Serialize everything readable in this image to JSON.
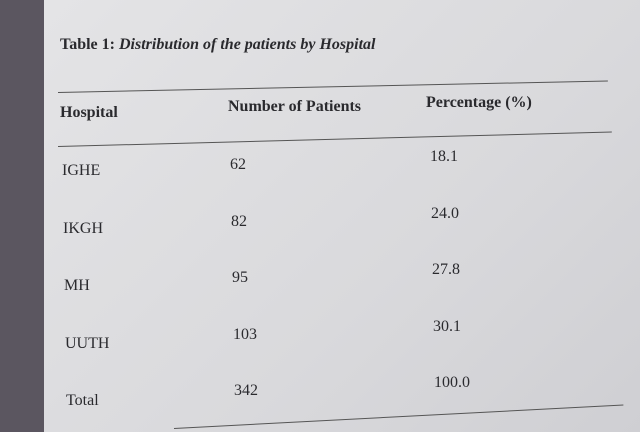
{
  "caption": {
    "label": "Table 1:",
    "title": "Distribution of the patients by Hospital"
  },
  "table": {
    "header": [
      "Hospital",
      "Number of Patients",
      "Percentage (%)"
    ],
    "rows": [
      [
        "IGHE",
        "62",
        "18.1"
      ],
      [
        "IKGH",
        "82",
        "24.0"
      ],
      [
        "MH",
        "95",
        "27.8"
      ],
      [
        "UUTH",
        "103",
        "30.1"
      ],
      [
        "Total",
        "342",
        "100.0"
      ]
    ]
  }
}
